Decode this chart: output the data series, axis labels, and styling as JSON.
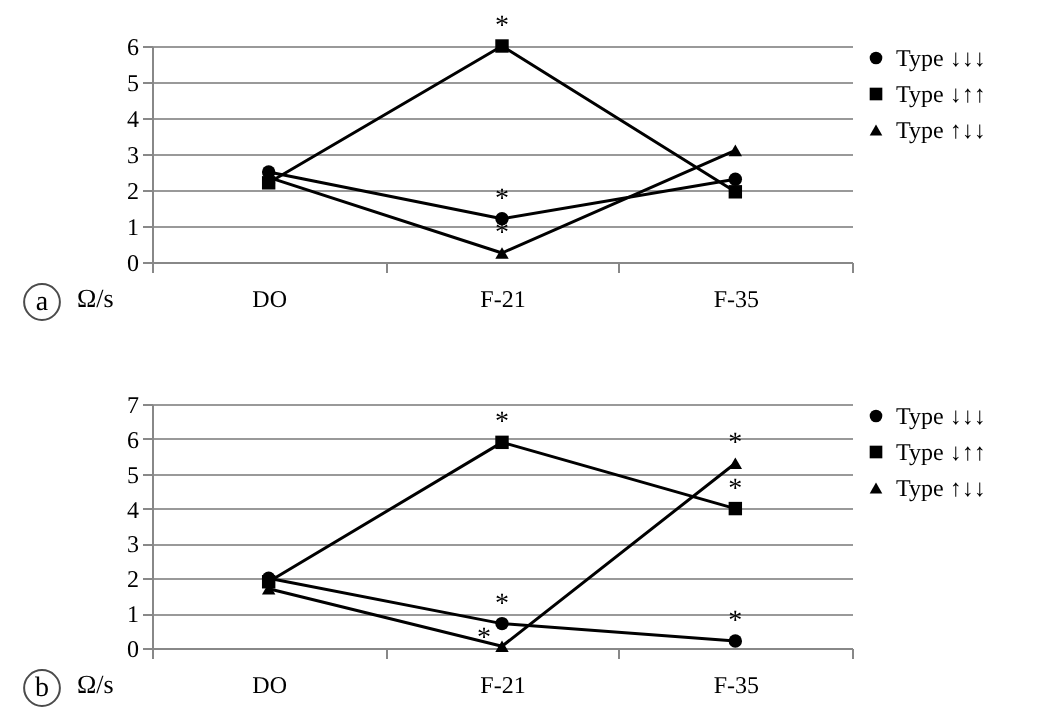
{
  "chart_data": [
    {
      "type": "line",
      "ylabel": "Ω/s",
      "categories": [
        "DO",
        "F-21",
        "F-35"
      ],
      "ylim": [
        0,
        6
      ],
      "yticks": [
        0,
        1,
        2,
        3,
        4,
        5,
        6
      ],
      "grid": "y",
      "legend": "right",
      "series": [
        {
          "name": "Type ↓↓↓",
          "color": "#000000",
          "marker": "circle",
          "values": [
            2.5,
            1.2,
            2.3
          ]
        },
        {
          "name": "Type ↓↑↑",
          "color": "#000000",
          "marker": "square",
          "values": [
            2.2,
            6.0,
            1.95
          ]
        },
        {
          "name": "Type ↑↓↓",
          "color": "#000000",
          "marker": "triangle",
          "values": [
            2.35,
            0.25,
            3.1
          ]
        }
      ],
      "annotations": [
        "a",
        {
          "text": "*",
          "x": "F-21",
          "y": 6.0
        },
        {
          "text": "*",
          "x": "F-21",
          "y": 1.2
        },
        {
          "text": "*",
          "x": "F-21",
          "y": 0.25
        }
      ]
    },
    {
      "type": "line",
      "ylabel": "Ω/s",
      "categories": [
        "DO",
        "F-21",
        "F-35"
      ],
      "ylim": [
        0,
        7
      ],
      "yticks": [
        0,
        1,
        2,
        3,
        4,
        5,
        6,
        7
      ],
      "grid": "y",
      "legend": "right",
      "series": [
        {
          "name": "Type ↓↓↓",
          "color": "#000000",
          "marker": "circle",
          "values": [
            2.0,
            0.7,
            0.2
          ]
        },
        {
          "name": "Type ↓↑↑",
          "color": "#000000",
          "marker": "square",
          "values": [
            1.9,
            5.9,
            4.0
          ]
        },
        {
          "name": "Type ↑↓↓",
          "color": "#000000",
          "marker": "triangle",
          "values": [
            1.7,
            0.05,
            5.3
          ]
        }
      ],
      "annotations": [
        "b",
        {
          "text": "*",
          "x": "F-21",
          "y": 5.9
        },
        {
          "text": "*",
          "x": "F-21",
          "y": 0.7
        },
        {
          "text": "*",
          "x": "F-21",
          "y": 0.05
        },
        {
          "text": "*",
          "x": "F-35",
          "y": 5.3
        },
        {
          "text": "*",
          "x": "F-35",
          "y": 4.0
        },
        {
          "text": "*",
          "x": "F-35",
          "y": 0.2
        }
      ]
    }
  ]
}
